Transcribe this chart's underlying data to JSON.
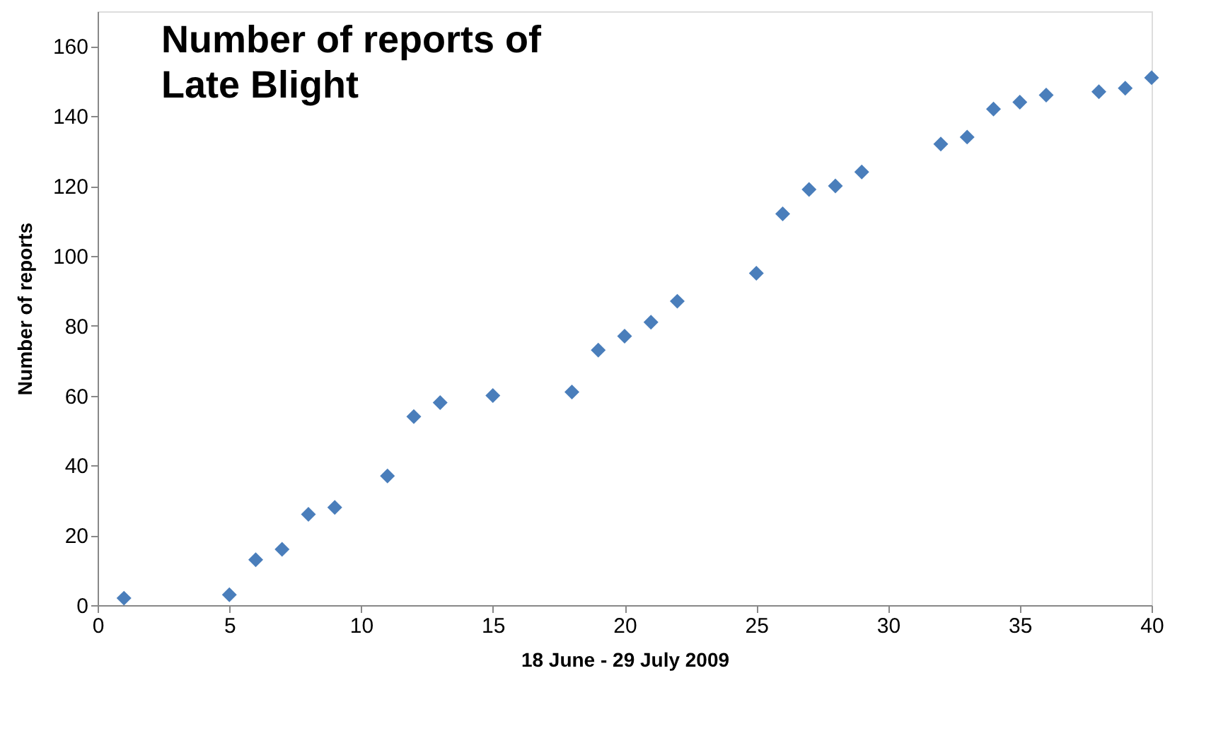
{
  "chart_data": {
    "type": "scatter",
    "title": "Number of reports of Late Blight",
    "xlabel": "18 June - 29 July 2009",
    "ylabel": "Number of reports",
    "x": [
      1,
      5,
      6,
      7,
      8,
      9,
      11,
      12,
      13,
      15,
      18,
      19,
      20,
      21,
      22,
      25,
      26,
      27,
      28,
      29,
      32,
      33,
      34,
      35,
      36,
      38,
      39,
      40
    ],
    "series": [
      {
        "color": "#4a7ebb",
        "values": [
          2,
          3,
          13,
          16,
          26,
          28,
          37,
          54,
          58,
          60,
          61,
          73,
          77,
          81,
          87,
          95,
          112,
          119,
          120,
          124,
          132,
          134,
          142,
          144,
          146,
          147,
          148,
          151
        ]
      }
    ],
    "xlim": [
      0,
      40
    ],
    "ylim": [
      0,
      170
    ],
    "xticks": [
      0,
      5,
      10,
      15,
      20,
      25,
      30,
      35,
      40
    ],
    "yticks": [
      0,
      20,
      40,
      60,
      80,
      100,
      120,
      140,
      160
    ],
    "marker": "diamond",
    "grid": false
  }
}
